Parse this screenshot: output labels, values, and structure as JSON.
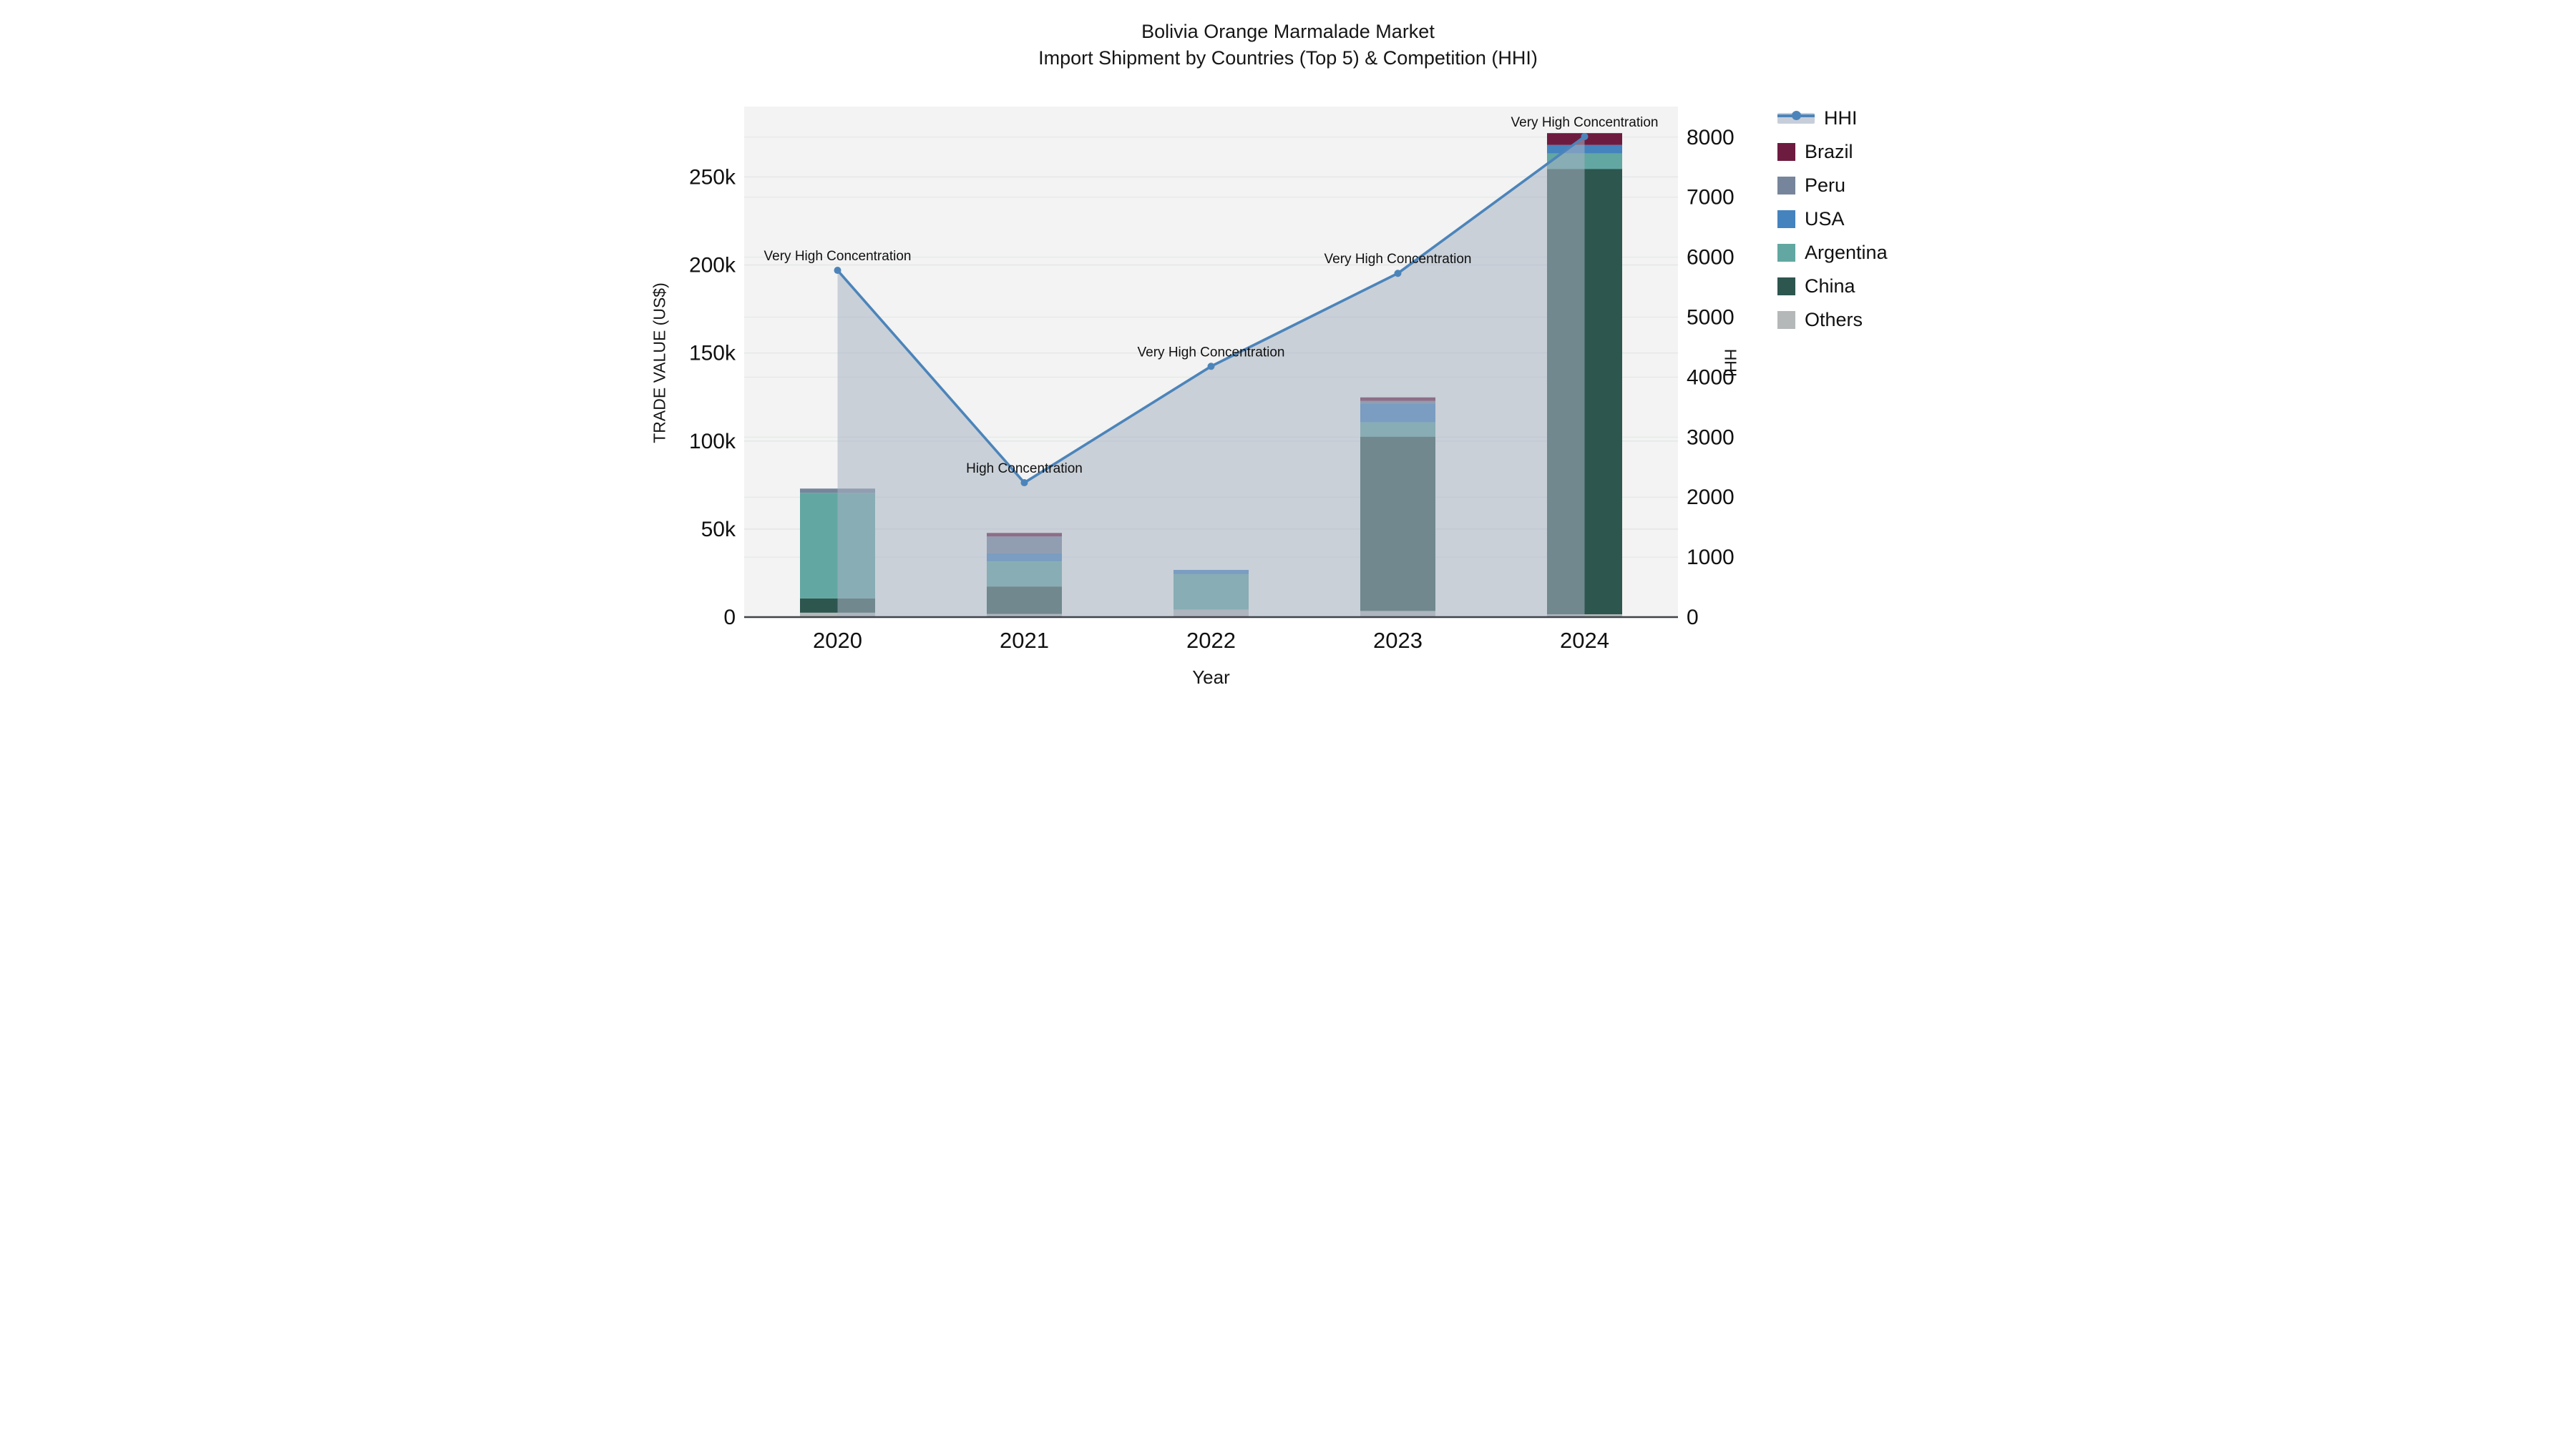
{
  "title": {
    "line1": "Bolivia Orange Marmalade Market",
    "line2": "Import Shipment by Countries (Top 5) & Competition (HHI)"
  },
  "axes": {
    "x_title": "Year",
    "y_left_title": "TRADE VALUE (US$)",
    "y_right_title": "HHI"
  },
  "legend": {
    "items": [
      {
        "label": "HHI",
        "type": "line",
        "color": "#4C84BA",
        "band_color": "#C7CEDA"
      },
      {
        "label": "Brazil",
        "type": "square",
        "color": "#6E1B40"
      },
      {
        "label": "Peru",
        "type": "square",
        "color": "#76859B"
      },
      {
        "label": "USA",
        "type": "square",
        "color": "#4483BE"
      },
      {
        "label": "Argentina",
        "type": "square",
        "color": "#62A7A2"
      },
      {
        "label": "China",
        "type": "square",
        "color": "#2D564F"
      },
      {
        "label": "Others",
        "type": "square",
        "color": "#B4B8B9"
      }
    ]
  },
  "chart_data": {
    "type": "bar+line",
    "title": "Bolivia Orange Marmalade Market — Import Shipment by Countries (Top 5) & Competition (HHI)",
    "xlabel": "Year",
    "ylabel_left": "TRADE VALUE (US$)",
    "ylabel_right": "HHI",
    "categories": [
      "2020",
      "2021",
      "2022",
      "2023",
      "2024"
    ],
    "bar_stack_order_bottom_to_top": [
      "Others",
      "China",
      "Argentina",
      "USA",
      "Peru",
      "Brazil"
    ],
    "series": [
      {
        "name": "Others",
        "color": "#B4B8B9",
        "values": [
          2500,
          1800,
          4300,
          3500,
          1600
        ]
      },
      {
        "name": "China",
        "color": "#2D564F",
        "values": [
          8100,
          15600,
          0,
          99000,
          253000
        ]
      },
      {
        "name": "Argentina",
        "color": "#62A7A2",
        "values": [
          60000,
          14200,
          20100,
          8100,
          8700
        ]
      },
      {
        "name": "USA",
        "color": "#4483BE",
        "values": [
          0,
          4700,
          2400,
          10800,
          4900
        ]
      },
      {
        "name": "Peru",
        "color": "#76859B",
        "values": [
          2400,
          9500,
          0,
          1400,
          0
        ]
      },
      {
        "name": "Brazil",
        "color": "#6E1B40",
        "values": [
          0,
          2000,
          0,
          2000,
          6700
        ]
      }
    ],
    "bar_totals": [
      73000,
      47800,
      26800,
      124800,
      274900
    ],
    "line_series": {
      "name": "HHI",
      "axis": "right",
      "color": "#4C84BA",
      "area_fill_color": "#A8B2C2",
      "area_fill_opacity": 0.55,
      "values": [
        5780,
        2240,
        4180,
        5730,
        8010
      ]
    },
    "annotations": [
      {
        "year": "2020",
        "text": "Very High Concentration"
      },
      {
        "year": "2021",
        "text": "High Concentration"
      },
      {
        "year": "2022",
        "text": "Very High Concentration"
      },
      {
        "year": "2023",
        "text": "Very High Concentration"
      },
      {
        "year": "2024",
        "text": "Very High Concentration"
      }
    ],
    "ylim_left": [
      0,
      290000
    ],
    "ylim_right": [
      0,
      8510
    ],
    "yticks_left": {
      "values": [
        0,
        50000,
        100000,
        150000,
        200000,
        250000
      ],
      "labels": [
        "0",
        "50k",
        "100k",
        "150k",
        "200k",
        "250k"
      ]
    },
    "yticks_right": {
      "values": [
        0,
        1000,
        2000,
        3000,
        4000,
        5000,
        6000,
        7000,
        8000
      ],
      "labels": [
        "0",
        "1000",
        "2000",
        "3000",
        "4000",
        "5000",
        "6000",
        "7000",
        "8000"
      ]
    },
    "grid": true,
    "plot_bg_color": "#F2F3F2",
    "grid_color": "#E4E5E7",
    "axis_line_color": "#3F4448",
    "legend_position": "right"
  }
}
